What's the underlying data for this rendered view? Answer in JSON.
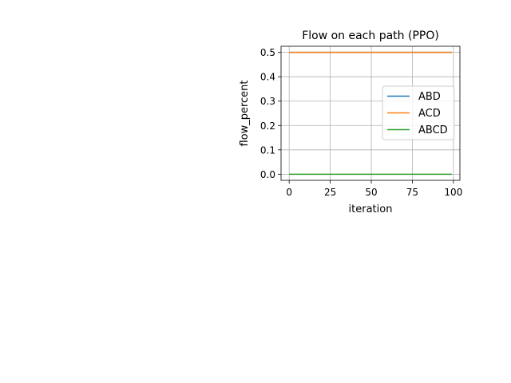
{
  "chart_data": {
    "type": "line",
    "title": "Flow on each path (PPO)",
    "xlabel": "iteration",
    "ylabel": "flow_percent",
    "xlim": [
      -4.95,
      103.95
    ],
    "ylim": [
      -0.025,
      0.525
    ],
    "xticks": [
      0,
      25,
      50,
      75,
      100
    ],
    "xtick_labels": [
      "0",
      "25",
      "50",
      "75",
      "100"
    ],
    "yticks": [
      0.0,
      0.1,
      0.2,
      0.3,
      0.4,
      0.5
    ],
    "ytick_labels": [
      "0.0",
      "0.1",
      "0.2",
      "0.3",
      "0.4",
      "0.5"
    ],
    "grid": true,
    "legend_position": "center-right",
    "series": [
      {
        "name": "ABD",
        "color": "#1f77b4",
        "x": [
          0,
          99
        ],
        "y": [
          0.5,
          0.5
        ]
      },
      {
        "name": "ACD",
        "color": "#ff7f0e",
        "x": [
          0,
          99
        ],
        "y": [
          0.5,
          0.5
        ]
      },
      {
        "name": "ABCD",
        "color": "#2ca02c",
        "x": [
          0,
          99
        ],
        "y": [
          0.0,
          0.0
        ]
      }
    ]
  }
}
